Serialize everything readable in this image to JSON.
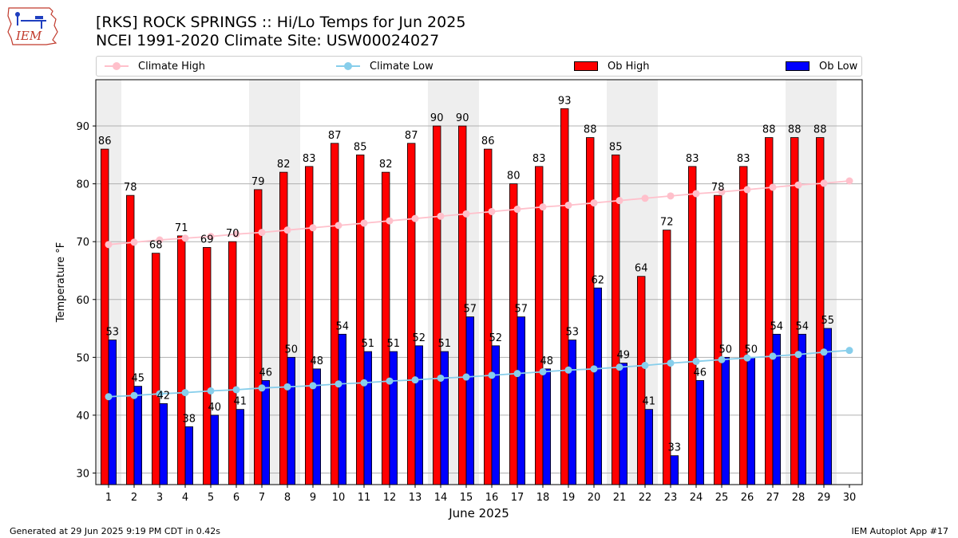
{
  "logo_text": "IEM",
  "titles": {
    "line1": "[RKS] ROCK SPRINGS :: Hi/Lo Temps for Jun 2025",
    "line2": "NCEI 1991-2020 Climate Site: USW00024027"
  },
  "footer": {
    "left": "Generated at 29 Jun 2025 9:19 PM CDT in 0.42s",
    "right": "IEM Autoplot App #17"
  },
  "colors": {
    "ob_high": "#ff0000",
    "ob_low": "#0000ff",
    "climate_high": "#ffc0cb",
    "climate_low": "#87ceeb",
    "weekend_shade": "#eeeeee"
  },
  "chart_data": {
    "type": "bar",
    "title": "[RKS] ROCK SPRINGS :: Hi/Lo Temps for Jun 2025",
    "xlabel": "June 2025",
    "ylabel": "Temperature °F",
    "ylim": [
      28,
      98
    ],
    "yticks": [
      30,
      40,
      50,
      60,
      70,
      80,
      90
    ],
    "grid": true,
    "legend_position": "top",
    "days": [
      1,
      2,
      3,
      4,
      5,
      6,
      7,
      8,
      9,
      10,
      11,
      12,
      13,
      14,
      15,
      16,
      17,
      18,
      19,
      20,
      21,
      22,
      23,
      24,
      25,
      26,
      27,
      28,
      29,
      30
    ],
    "shaded_days": [
      [
        1,
        1
      ],
      [
        7,
        8
      ],
      [
        14,
        15
      ],
      [
        21,
        22
      ],
      [
        28,
        29
      ]
    ],
    "series": [
      {
        "name": "Ob High",
        "kind": "bar",
        "values": [
          86,
          78,
          68,
          71,
          69,
          70,
          79,
          82,
          83,
          87,
          85,
          82,
          87,
          90,
          90,
          86,
          80,
          83,
          93,
          88,
          85,
          64,
          72,
          83,
          78,
          83,
          88,
          88,
          88,
          null
        ]
      },
      {
        "name": "Ob Low",
        "kind": "bar",
        "values": [
          53,
          45,
          42,
          38,
          40,
          41,
          46,
          50,
          48,
          54,
          51,
          51,
          52,
          51,
          57,
          52,
          57,
          48,
          53,
          62,
          49,
          41,
          33,
          46,
          50,
          50,
          54,
          54,
          55,
          null
        ]
      },
      {
        "name": "Climate High",
        "kind": "line",
        "values": [
          69.5,
          69.9,
          70.3,
          70.6,
          70.9,
          71.3,
          71.6,
          72.0,
          72.4,
          72.8,
          73.2,
          73.6,
          74.0,
          74.4,
          74.8,
          75.2,
          75.6,
          76.0,
          76.3,
          76.7,
          77.1,
          77.5,
          77.9,
          78.3,
          78.6,
          79.0,
          79.4,
          79.8,
          80.1,
          80.5
        ]
      },
      {
        "name": "Climate Low",
        "kind": "line",
        "values": [
          43.2,
          43.4,
          43.7,
          43.9,
          44.2,
          44.4,
          44.7,
          44.9,
          45.1,
          45.4,
          45.6,
          45.9,
          46.1,
          46.4,
          46.6,
          46.9,
          47.2,
          47.5,
          47.8,
          48.0,
          48.3,
          48.6,
          49.0,
          49.3,
          49.6,
          49.9,
          50.2,
          50.5,
          50.9,
          51.2
        ]
      }
    ]
  }
}
